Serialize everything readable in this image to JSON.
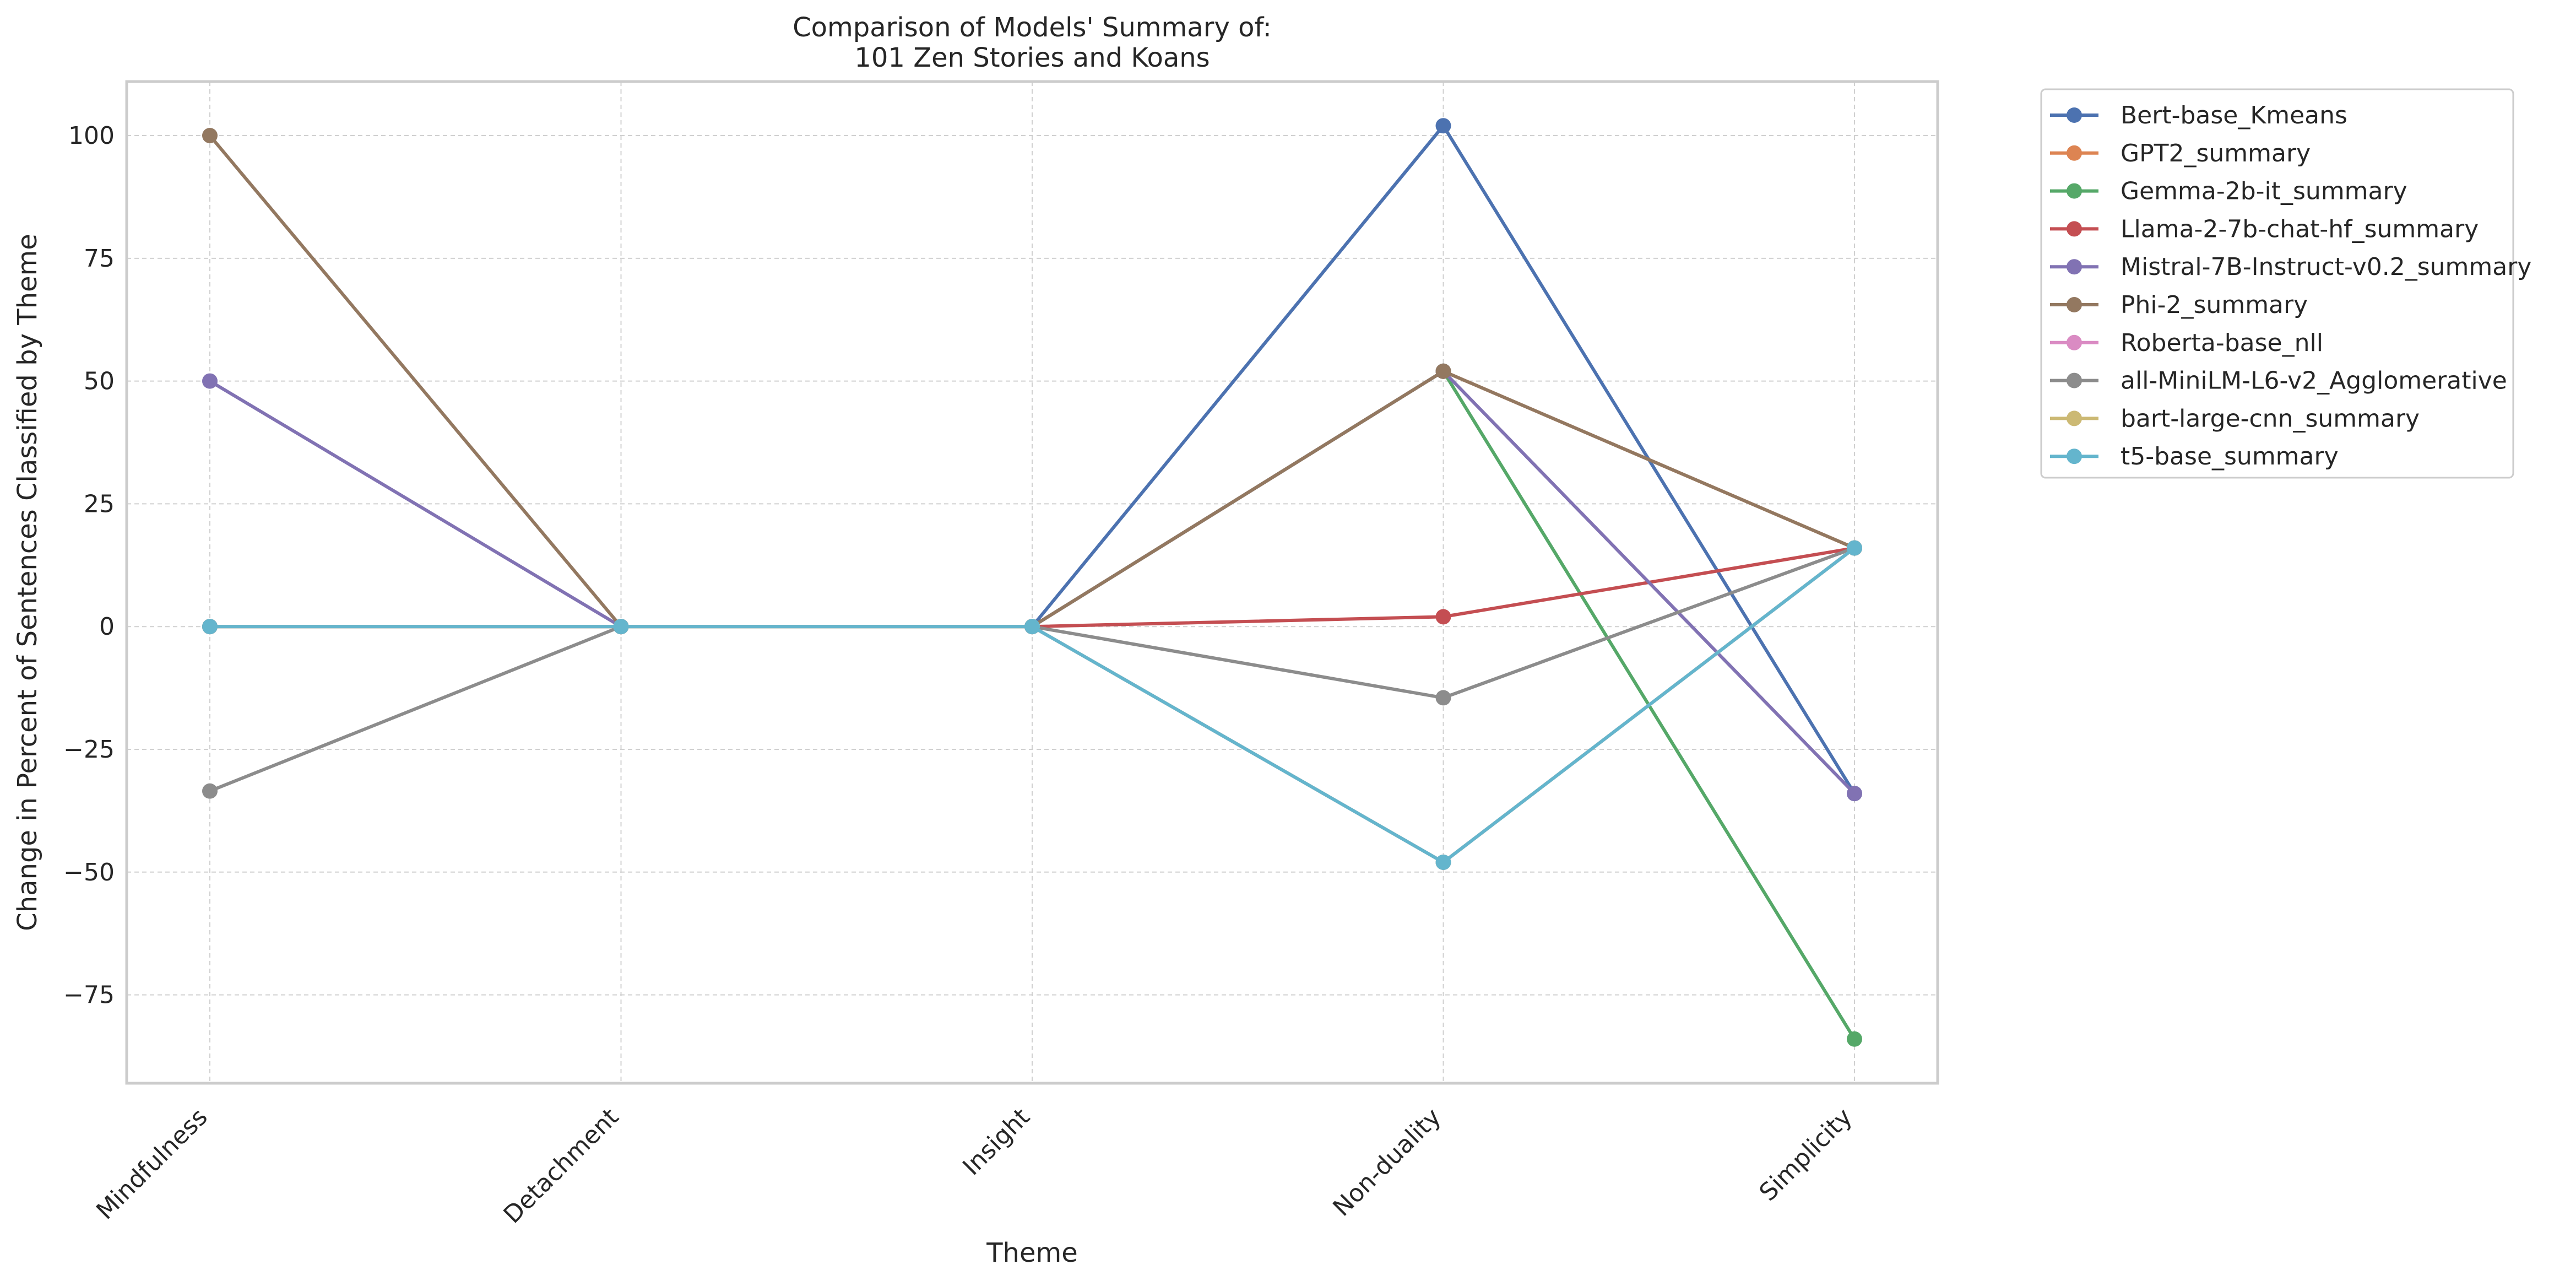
{
  "chart_data": {
    "type": "line",
    "title": "Comparison of Models' Summary of:",
    "subtitle": "101 Zen Stories and Koans",
    "xlabel": "Theme",
    "ylabel": "Change in Percent of Sentences Classified by Theme",
    "categories": [
      "Mindfulness",
      "Detachment",
      "Insight",
      "Non-duality",
      "Simplicity"
    ],
    "ylim": [
      -93,
      111
    ],
    "yticks": [
      -75,
      -50,
      -25,
      0,
      25,
      50,
      75,
      100
    ],
    "ytick_labels": [
      "−75",
      "−50",
      "−25",
      "0",
      "25",
      "50",
      "75",
      "100"
    ],
    "grid": true,
    "legend_position": "outside-top-right",
    "series": [
      {
        "name": "Bert-base_Kmeans",
        "color": "#4c72b0",
        "values": [
          0,
          0,
          0,
          102,
          -34
        ]
      },
      {
        "name": "GPT2_summary",
        "color": "#dd8452",
        "values": [
          0,
          0,
          0,
          52,
          16
        ]
      },
      {
        "name": "Gemma-2b-it_summary",
        "color": "#55a868",
        "values": [
          0,
          0,
          0,
          52,
          -84
        ]
      },
      {
        "name": "Llama-2-7b-chat-hf_summary",
        "color": "#c44e52",
        "values": [
          0,
          0,
          0,
          2,
          16
        ]
      },
      {
        "name": "Mistral-7B-Instruct-v0.2_summary",
        "color": "#8172b3",
        "values": [
          50,
          0,
          0,
          52,
          -34
        ]
      },
      {
        "name": "Phi-2_summary",
        "color": "#937860",
        "values": [
          100,
          0,
          0,
          52,
          16
        ]
      },
      {
        "name": "Roberta-base_nll",
        "color": "#da8bc3",
        "values": [
          0,
          0,
          0,
          -48,
          16
        ]
      },
      {
        "name": "all-MiniLM-L6-v2_Agglomerative",
        "color": "#8c8c8c",
        "values": [
          -33.5,
          0,
          0,
          -14.5,
          16
        ]
      },
      {
        "name": "bart-large-cnn_summary",
        "color": "#ccb974",
        "values": [
          0,
          0,
          0,
          -48,
          16
        ]
      },
      {
        "name": "t5-base_summary",
        "color": "#64b5cd",
        "values": [
          0,
          0,
          0,
          -48,
          16
        ]
      }
    ]
  }
}
